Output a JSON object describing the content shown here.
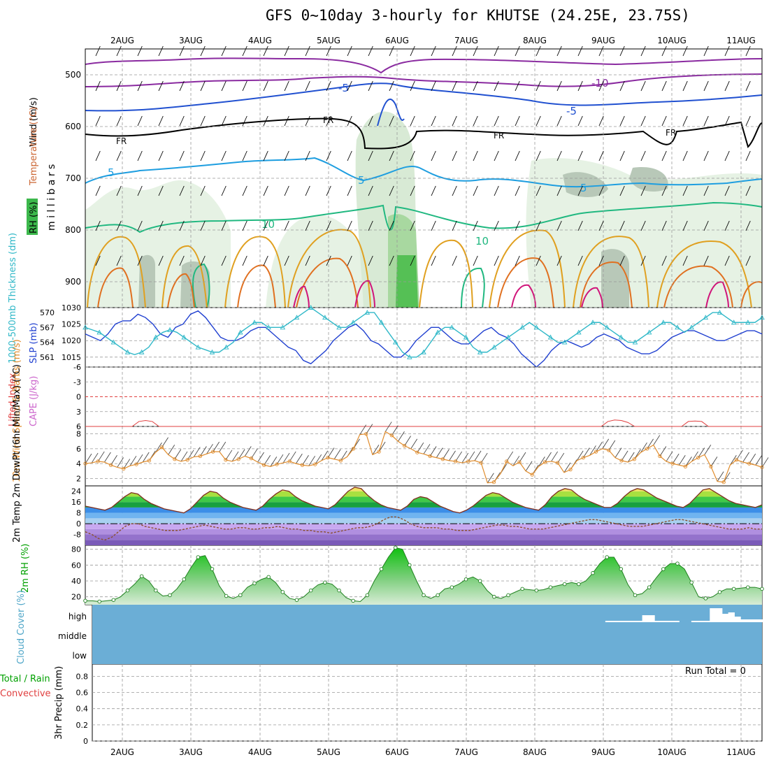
{
  "title": "GFS 0~10day 3-hourly for KHUTSE (24.25E, 23.75S)",
  "dates": [
    "2AUG",
    "3AUG",
    "4AUG",
    "5AUG",
    "6AUG",
    "7AUG",
    "8AUG",
    "9AUG",
    "10AUG",
    "11AUG"
  ],
  "colors": {
    "grid": "#999999",
    "frame": "#000000",
    "slp": "#2040d0",
    "thick": "#30b8c8",
    "wind": "#e08c2c",
    "rh": "#00a000",
    "cloud": "#6baed6",
    "lifted": "#e04040",
    "cape": "#cc66cc"
  },
  "chart_data": [
    {
      "type": "contour",
      "panel": "upper-air",
      "ylabel": "m i l l i b a r s",
      "legend_labels": [
        "Wind (m/s)",
        "Temperature (°C)",
        "RH (%)"
      ],
      "yticks": [
        500,
        600,
        700,
        800,
        900
      ],
      "ylim": [
        950,
        450
      ],
      "isotherm_labels": [
        "-10",
        "-5",
        "FR",
        "5",
        "10"
      ]
    },
    {
      "type": "line",
      "panel": "slp-thickness",
      "ylabel_left": "1000-500mb Thickness (dm)",
      "ylabel_right": "SLP (mb)",
      "thickness_ticks": [
        561,
        564,
        567,
        570
      ],
      "slp_ticks": [
        1015,
        1020,
        1025,
        1030
      ],
      "series": [
        {
          "name": "SLP",
          "color": "slp",
          "ylim": [
            1012,
            1030
          ],
          "values": [
            1022,
            1021,
            1020,
            1022,
            1025,
            1026,
            1026,
            1028,
            1027,
            1025,
            1022,
            1021,
            1024,
            1025,
            1028,
            1029,
            1027,
            1024,
            1021,
            1020,
            1020,
            1021,
            1023,
            1024,
            1024,
            1022,
            1020,
            1018,
            1017,
            1014,
            1013,
            1015,
            1017,
            1020,
            1022,
            1024,
            1025,
            1023,
            1020,
            1019,
            1017,
            1015,
            1015,
            1017,
            1020,
            1022,
            1024,
            1024,
            1022,
            1020,
            1019,
            1019,
            1021,
            1023,
            1024,
            1022,
            1021,
            1019,
            1016,
            1014,
            1012,
            1014,
            1017,
            1019,
            1020,
            1019,
            1018,
            1019,
            1021,
            1022,
            1021,
            1020,
            1018,
            1017,
            1016,
            1016,
            1017,
            1019,
            1021,
            1022,
            1023,
            1023,
            1022,
            1021,
            1020,
            1020,
            1021,
            1022,
            1023,
            1023,
            1022
          ]
        },
        {
          "name": "Thickness",
          "color": "thick",
          "ylim": [
            559,
            571
          ],
          "values": [
            567,
            566.5,
            566,
            565,
            564,
            563,
            562,
            561.5,
            562,
            563,
            565,
            566,
            566.5,
            566,
            565,
            564,
            563,
            562.5,
            562,
            562,
            563,
            564,
            566,
            567,
            568,
            568,
            567,
            567,
            567,
            568,
            569,
            570,
            571,
            570,
            569,
            568,
            567,
            567,
            568,
            569,
            570,
            570,
            568,
            566,
            564,
            562,
            561,
            561,
            562,
            564,
            566,
            567,
            567,
            566,
            565,
            563,
            562,
            562,
            563,
            564,
            565,
            566,
            567,
            568,
            567,
            566,
            565,
            564,
            564,
            565,
            566,
            567,
            568,
            568,
            567,
            566,
            565,
            564,
            564,
            565,
            566,
            567,
            568,
            568,
            567,
            566,
            567,
            568,
            569,
            570,
            570,
            569,
            568,
            568,
            568,
            568,
            569
          ]
        }
      ]
    },
    {
      "type": "line",
      "panel": "lifted-index-cape",
      "ylabel_left": "Lifted Index",
      "ylabel_right": "CAPE (J/kg)",
      "yticks": [
        "-6",
        "-3",
        "0",
        "3",
        "6"
      ],
      "ylim": [
        6,
        -6
      ],
      "zero_line": 0,
      "series": [
        {
          "name": "Lifted Index",
          "values": [
            6,
            6,
            6,
            6,
            6,
            6,
            6,
            6,
            5,
            4.8,
            5,
            6,
            6,
            6,
            6,
            6,
            6,
            6,
            6,
            6,
            6,
            6,
            6,
            6,
            6,
            6,
            6,
            6,
            6,
            6,
            6,
            6,
            6,
            6,
            6,
            6,
            6,
            6,
            6,
            6,
            6,
            6,
            6,
            6,
            6,
            6,
            6,
            6,
            6,
            6,
            6,
            6,
            6,
            6,
            6,
            6,
            6,
            6,
            6,
            6,
            6,
            6,
            6,
            6,
            6,
            6,
            6,
            6,
            6,
            6,
            6,
            6,
            6,
            6,
            6,
            6,
            6,
            6,
            5,
            4.7,
            4.8,
            5.2,
            6,
            6,
            6,
            6,
            6,
            6,
            6,
            6,
            5,
            4.9,
            5,
            6,
            6,
            6,
            6,
            6,
            6,
            6,
            6,
            6
          ]
        }
      ]
    },
    {
      "type": "line",
      "panel": "wind-10m",
      "ylabel": "10m Wind Speed & Barbs (m/s)",
      "yticks": [
        2,
        4,
        6,
        8
      ],
      "ylim": [
        1,
        9
      ],
      "series": [
        {
          "name": "10m Wind Speed",
          "color": "wind",
          "values": [
            4,
            4.1,
            4.3,
            4.2,
            3.8,
            3.5,
            3.3,
            3.7,
            3.9,
            4.2,
            4.4,
            5.5,
            6.2,
            5.2,
            4.6,
            4.3,
            4.5,
            4.9,
            5.0,
            5.3,
            5.6,
            5.6,
            4.5,
            4.3,
            4.6,
            5.0,
            4.7,
            4.2,
            3.8,
            3.6,
            3.9,
            4.1,
            4.3,
            4.0,
            3.8,
            3.7,
            3.9,
            4.4,
            4.8,
            4.6,
            4.4,
            4.9,
            6.0,
            7.9,
            8.0,
            5.2,
            5.6,
            8.3,
            7.8,
            7.0,
            6.4,
            6.0,
            5.5,
            5.3,
            5.0,
            4.8,
            4.6,
            4.4,
            4.3,
            4.1,
            4.3,
            4.4,
            4.1,
            1.4,
            1.5,
            2.6,
            4.3,
            3.7,
            4.2,
            3.0,
            2.5,
            3.6,
            4.2,
            4.3,
            4.1,
            2.8,
            3.2,
            4.4,
            4.8,
            5.1,
            5.6,
            6.0,
            5.8,
            4.8,
            4.4,
            4.2,
            4.6,
            5.5,
            6.0,
            6.5,
            5.0,
            4.3,
            4.0,
            3.8,
            3.6,
            4.3,
            4.8,
            5.2,
            3.6,
            1.6,
            1.5,
            3.8,
            4.5,
            4.2,
            4.0,
            3.8,
            3.5
          ]
        }
      ]
    },
    {
      "type": "area",
      "panel": "temp-dewpoint-2m",
      "ylabel": "2m Temp 2m DewPt (6hr Min/Max) (°C)",
      "yticks": [
        "-8",
        "0",
        "8",
        "16",
        "24"
      ],
      "ylim": [
        -16,
        28
      ],
      "series": [
        {
          "name": "2m Temp",
          "values": [
            13,
            12,
            11,
            10,
            12,
            16,
            20,
            23,
            22,
            18,
            15,
            13,
            11,
            10,
            9,
            8,
            11,
            16,
            21,
            24,
            23,
            19,
            16,
            14,
            12,
            11,
            10,
            13,
            18,
            22,
            25,
            24,
            20,
            17,
            15,
            13,
            12,
            11,
            14,
            19,
            24,
            27,
            26,
            21,
            17,
            14,
            12,
            11,
            10,
            13,
            18,
            20,
            19,
            16,
            13,
            11,
            9,
            8,
            10,
            13,
            17,
            21,
            23,
            22,
            19,
            16,
            14,
            12,
            11,
            10,
            14,
            20,
            24,
            26,
            25,
            21,
            18,
            16,
            14,
            12,
            12,
            15,
            20,
            24,
            26,
            25,
            22,
            19,
            17,
            15,
            13,
            12,
            15,
            20,
            25,
            26,
            23,
            20,
            17,
            15,
            14,
            13,
            12,
            14
          ]
        },
        {
          "name": "2m DewPt",
          "values": [
            -6,
            -8,
            -11,
            -12,
            -10,
            -6,
            -2,
            0,
            0,
            -2,
            -3,
            -4,
            -5,
            -5,
            -5,
            -4,
            -3,
            -2,
            -1,
            -2,
            -3,
            -4,
            -4,
            -3,
            -3,
            -4,
            -4,
            -3,
            -3,
            -2,
            -3,
            -4,
            -4,
            -5,
            -5,
            -6,
            -6,
            -7,
            -6,
            -5,
            -4,
            -3,
            -3,
            -2,
            0,
            3,
            5,
            5,
            3,
            0,
            -2,
            -3,
            -3,
            -3,
            -4,
            -4,
            -5,
            -5,
            -5,
            -4,
            -3,
            -2,
            -1,
            -1,
            -2,
            -2,
            -3,
            -4,
            -4,
            -4,
            -3,
            -2,
            -1,
            0,
            1,
            2,
            3,
            3,
            2,
            1,
            0,
            -1,
            -2,
            -2,
            -2,
            -1,
            0,
            1,
            2,
            3,
            3,
            2,
            1,
            0,
            -1,
            -2,
            -3,
            -4,
            -4,
            -4,
            -3,
            -4,
            -4
          ]
        }
      ]
    },
    {
      "type": "area",
      "panel": "rh-2m",
      "ylabel": "2m RH (%)",
      "yticks": [
        20,
        40,
        60,
        80
      ],
      "ylim": [
        10,
        85
      ],
      "series": [
        {
          "name": "2m RH",
          "color": "rh",
          "values": [
            15,
            15,
            14,
            15,
            16,
            20,
            28,
            36,
            46,
            40,
            28,
            21,
            22,
            30,
            42,
            57,
            70,
            72,
            55,
            34,
            21,
            18,
            22,
            32,
            37,
            42,
            45,
            38,
            26,
            18,
            16,
            20,
            28,
            35,
            38,
            36,
            28,
            19,
            15,
            14,
            22,
            40,
            55,
            70,
            82,
            80,
            60,
            40,
            22,
            18,
            22,
            30,
            32,
            36,
            42,
            45,
            40,
            28,
            20,
            18,
            22,
            26,
            30,
            29,
            28,
            29,
            32,
            34,
            36,
            38,
            36,
            40,
            50,
            62,
            70,
            70,
            55,
            35,
            22,
            24,
            32,
            44,
            55,
            62,
            62,
            55,
            38,
            20,
            18,
            20,
            26,
            30,
            30,
            31,
            32,
            32,
            30
          ]
        }
      ]
    },
    {
      "type": "bar",
      "panel": "cloud-cover",
      "ylabel": "Cloud Cover (%)",
      "yticks": [
        "low",
        "middle",
        "high"
      ],
      "values": [
        0,
        0,
        0,
        0,
        0,
        0,
        0,
        0,
        0,
        0,
        0,
        0,
        0,
        0,
        0,
        0,
        0,
        0,
        0,
        0,
        0,
        0,
        0,
        0,
        0,
        0,
        0,
        0,
        0,
        0,
        0,
        0,
        0,
        0,
        0,
        0,
        0,
        0,
        0,
        0,
        0,
        0,
        0,
        0,
        0,
        0,
        0,
        0,
        0,
        0,
        0,
        0,
        0,
        0,
        0,
        0,
        0,
        0,
        0,
        0,
        0,
        0,
        0,
        0,
        0,
        0,
        0,
        0,
        0,
        0,
        0,
        0,
        0,
        0,
        0,
        0,
        0,
        0,
        0,
        0,
        0,
        0,
        0,
        0,
        2,
        2,
        2,
        2,
        2,
        2,
        10,
        10,
        2,
        2,
        2,
        2,
        0,
        0,
        2,
        2,
        2,
        20,
        20,
        12,
        14,
        8,
        4,
        4,
        4,
        4
      ]
    },
    {
      "type": "bar",
      "panel": "precip-3hr",
      "ylabel": "3hr Precip (mm)",
      "legend_labels": [
        "Total / Rain",
        "Convective"
      ],
      "yticks": [
        "0",
        "0.2",
        "0.4",
        "0.6",
        "0.8"
      ],
      "ylim": [
        0,
        0.95
      ],
      "run_total": "Run Total = 0",
      "values": []
    }
  ]
}
